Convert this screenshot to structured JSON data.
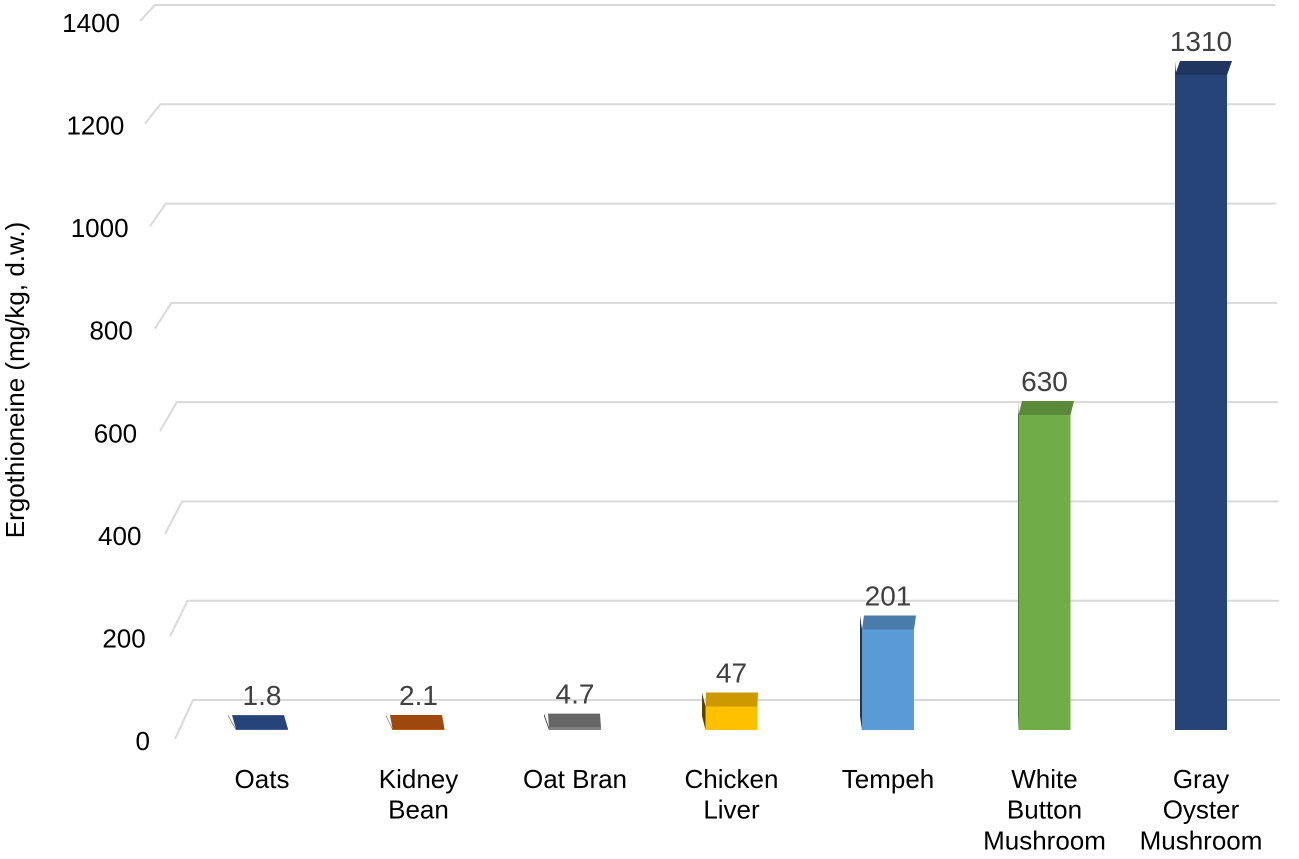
{
  "chart_data": {
    "type": "bar3d",
    "y_label": "Ergothioneine (mg/kg, d.w.)",
    "categories": [
      "Oats",
      "Kidney\nBean",
      "Oat Bran",
      "Chicken\nLiver",
      "Tempeh",
      "White\nButton\nMushroom",
      "Gray\nOyster\nMushroom"
    ],
    "values": [
      1.8,
      2.1,
      4.7,
      47,
      201,
      630,
      1310
    ],
    "colors": [
      "#2f5597",
      "#c55a11",
      "#7f7f7f",
      "#ffc000",
      "#5b9bd5",
      "#70ad47",
      "#264478"
    ],
    "ylim": [
      0,
      1400
    ],
    "yticks": [
      0,
      200,
      400,
      600,
      800,
      1000,
      1200,
      1400
    ],
    "grid": true
  }
}
